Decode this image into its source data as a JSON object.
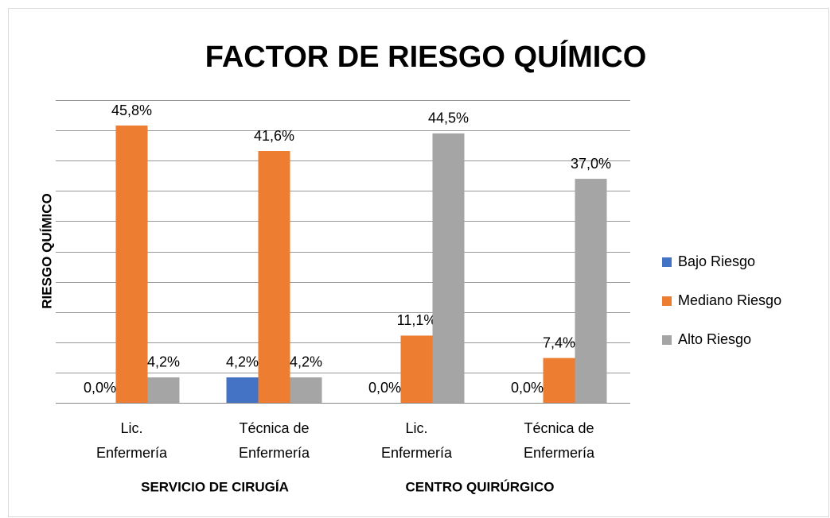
{
  "chart_data": {
    "type": "bar",
    "title": "FACTOR DE RIESGO QUÍMICO",
    "y_label": "RIESGO QUÍMICO",
    "categories": [
      [
        "Lic.",
        "Enfermería"
      ],
      [
        "Técnica de",
        "Enfermería"
      ],
      [
        "Lic.",
        "Enfermería"
      ],
      [
        "Técnica de",
        "Enfermería"
      ]
    ],
    "groups": [
      "SERVICIO DE CIRUGÍA",
      "CENTRO QUIRÚRGICO"
    ],
    "series": [
      {
        "name": "Bajo Riesgo",
        "color": "#4472c4",
        "values": [
          0,
          4.2,
          0,
          0
        ],
        "value_labels": [
          "0,0%",
          "4,2%",
          "0,0%",
          "0,0%"
        ]
      },
      {
        "name": "Mediano Riesgo",
        "color": "#ed7d31",
        "values": [
          45.8,
          41.6,
          11.1,
          7.4
        ],
        "value_labels": [
          "45,8%",
          "41,6%",
          "11,1%",
          "7,4%"
        ]
      },
      {
        "name": "Alto Riesgo",
        "color": "#a5a5a5",
        "values": [
          4.2,
          4.2,
          44.5,
          37.0
        ],
        "value_labels": [
          "4,2%",
          "4,2%",
          "44,5%",
          "37,0%"
        ]
      }
    ],
    "ylim": [
      0,
      50
    ],
    "yticks": [
      0,
      5,
      10,
      15,
      20,
      25,
      30,
      35,
      40,
      45,
      50
    ],
    "grid": true,
    "legend": "right"
  }
}
